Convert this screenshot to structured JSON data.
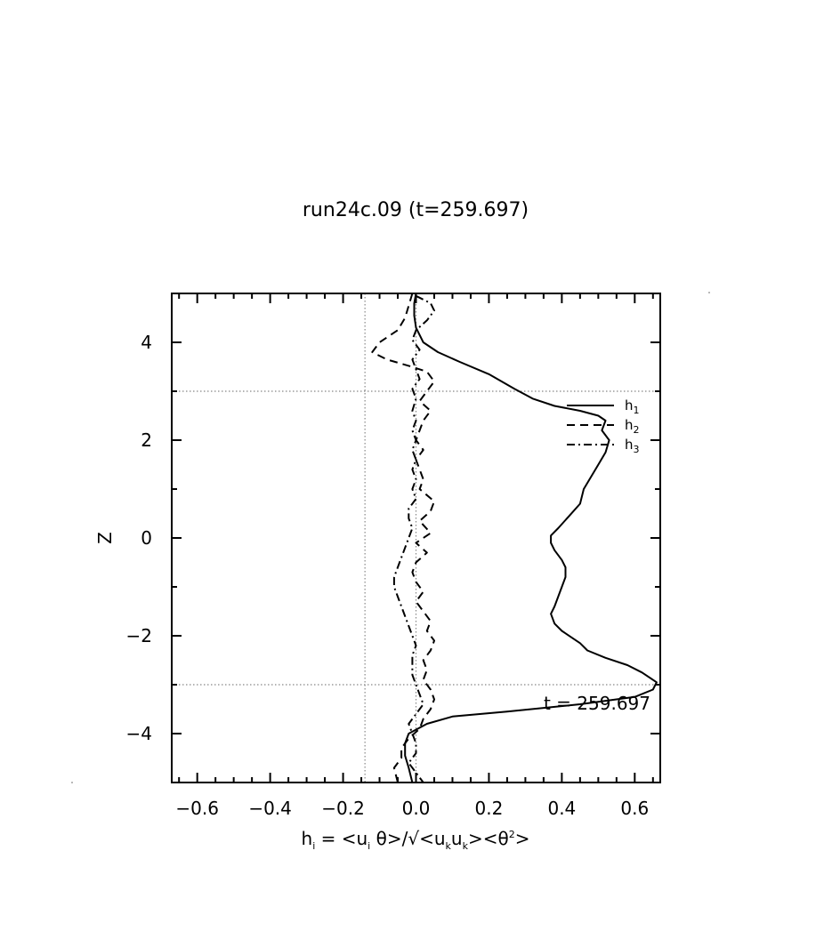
{
  "chart_data": {
    "type": "line",
    "title": "run24c.09 (t=259.697)",
    "xlabel": "h_i = <u_i θ>/√<u_k u_k><θ^2>",
    "ylabel": "Z",
    "xlim": [
      -0.67,
      0.67
    ],
    "ylim": [
      -5,
      5
    ],
    "xticks": [
      -0.6,
      -0.4,
      -0.2,
      0.0,
      0.2,
      0.4,
      0.6
    ],
    "xtick_labels": [
      "−0.6",
      "−0.4",
      "−0.2",
      "0.0",
      "0.2",
      "0.4",
      "0.6"
    ],
    "yticks": [
      -4,
      -2,
      0,
      2,
      4
    ],
    "ytick_labels": [
      "−4",
      "−2",
      "0",
      "2",
      "4"
    ],
    "reference_lines": {
      "horizontal_y": [
        3,
        -3
      ],
      "vertical_x": [
        -0.14,
        0.0
      ]
    },
    "annotation": "t = 259.697",
    "legend_position": "upper-right",
    "series": [
      {
        "name": "h1",
        "style": "solid",
        "points": [
          [
            0.0,
            5.0
          ],
          [
            -0.005,
            4.8
          ],
          [
            -0.005,
            4.55
          ],
          [
            0.0,
            4.3
          ],
          [
            0.02,
            4.0
          ],
          [
            0.06,
            3.8
          ],
          [
            0.12,
            3.6
          ],
          [
            0.2,
            3.35
          ],
          [
            0.27,
            3.05
          ],
          [
            0.32,
            2.85
          ],
          [
            0.38,
            2.7
          ],
          [
            0.45,
            2.6
          ],
          [
            0.5,
            2.5
          ],
          [
            0.52,
            2.4
          ],
          [
            0.51,
            2.2
          ],
          [
            0.53,
            2.0
          ],
          [
            0.52,
            1.75
          ],
          [
            0.5,
            1.5
          ],
          [
            0.48,
            1.25
          ],
          [
            0.46,
            1.0
          ],
          [
            0.45,
            0.7
          ],
          [
            0.42,
            0.45
          ],
          [
            0.39,
            0.2
          ],
          [
            0.37,
            0.05
          ],
          [
            0.37,
            -0.1
          ],
          [
            0.38,
            -0.25
          ],
          [
            0.4,
            -0.45
          ],
          [
            0.41,
            -0.6
          ],
          [
            0.41,
            -0.8
          ],
          [
            0.4,
            -1.0
          ],
          [
            0.39,
            -1.2
          ],
          [
            0.38,
            -1.4
          ],
          [
            0.37,
            -1.55
          ],
          [
            0.38,
            -1.75
          ],
          [
            0.4,
            -1.9
          ],
          [
            0.43,
            -2.05
          ],
          [
            0.45,
            -2.15
          ],
          [
            0.47,
            -2.3
          ],
          [
            0.52,
            -2.45
          ],
          [
            0.58,
            -2.6
          ],
          [
            0.62,
            -2.75
          ],
          [
            0.66,
            -2.95
          ],
          [
            0.65,
            -3.1
          ],
          [
            0.6,
            -3.25
          ],
          [
            0.45,
            -3.4
          ],
          [
            0.25,
            -3.55
          ],
          [
            0.1,
            -3.65
          ],
          [
            0.03,
            -3.8
          ],
          [
            -0.02,
            -4.0
          ],
          [
            -0.03,
            -4.2
          ],
          [
            -0.03,
            -4.45
          ],
          [
            -0.02,
            -4.7
          ],
          [
            -0.01,
            -5.0
          ]
        ]
      },
      {
        "name": "h2",
        "style": "dashed",
        "points": [
          [
            -0.01,
            5.0
          ],
          [
            -0.02,
            4.75
          ],
          [
            -0.03,
            4.5
          ],
          [
            -0.05,
            4.25
          ],
          [
            -0.1,
            4.0
          ],
          [
            -0.12,
            3.8
          ],
          [
            -0.08,
            3.65
          ],
          [
            -0.02,
            3.52
          ],
          [
            0.03,
            3.4
          ],
          [
            0.05,
            3.2
          ],
          [
            0.03,
            3.0
          ],
          [
            0.01,
            2.8
          ],
          [
            0.04,
            2.6
          ],
          [
            0.02,
            2.4
          ],
          [
            0.01,
            2.2
          ],
          [
            0.0,
            2.0
          ],
          [
            0.02,
            1.8
          ],
          [
            0.0,
            1.6
          ],
          [
            0.01,
            1.4
          ],
          [
            0.02,
            1.2
          ],
          [
            0.01,
            1.0
          ],
          [
            0.05,
            0.75
          ],
          [
            0.04,
            0.55
          ],
          [
            0.01,
            0.35
          ],
          [
            0.04,
            0.1
          ],
          [
            0.0,
            -0.1
          ],
          [
            0.03,
            -0.3
          ],
          [
            0.0,
            -0.5
          ],
          [
            -0.01,
            -0.7
          ],
          [
            0.0,
            -0.9
          ],
          [
            0.02,
            -1.1
          ],
          [
            0.0,
            -1.3
          ],
          [
            0.02,
            -1.5
          ],
          [
            0.04,
            -1.7
          ],
          [
            0.03,
            -1.9
          ],
          [
            0.05,
            -2.1
          ],
          [
            0.04,
            -2.3
          ],
          [
            0.02,
            -2.5
          ],
          [
            0.03,
            -2.7
          ],
          [
            0.02,
            -2.9
          ],
          [
            0.04,
            -3.1
          ],
          [
            0.05,
            -3.3
          ],
          [
            0.04,
            -3.5
          ],
          [
            0.02,
            -3.7
          ],
          [
            0.01,
            -3.9
          ],
          [
            -0.02,
            -4.1
          ],
          [
            -0.04,
            -4.3
          ],
          [
            -0.04,
            -4.5
          ],
          [
            -0.06,
            -4.7
          ],
          [
            -0.05,
            -5.0
          ]
        ]
      },
      {
        "name": "h3",
        "style": "dashdot",
        "points": [
          [
            0.0,
            4.95
          ],
          [
            0.04,
            4.8
          ],
          [
            0.05,
            4.65
          ],
          [
            0.03,
            4.45
          ],
          [
            0.0,
            4.25
          ],
          [
            -0.01,
            4.05
          ],
          [
            0.01,
            3.85
          ],
          [
            -0.01,
            3.65
          ],
          [
            0.0,
            3.45
          ],
          [
            0.01,
            3.25
          ],
          [
            -0.01,
            3.05
          ],
          [
            0.0,
            2.85
          ],
          [
            -0.01,
            2.6
          ],
          [
            0.0,
            2.4
          ],
          [
            -0.01,
            2.2
          ],
          [
            0.0,
            2.0
          ],
          [
            -0.01,
            1.8
          ],
          [
            0.0,
            1.6
          ],
          [
            -0.01,
            1.4
          ],
          [
            0.0,
            1.2
          ],
          [
            -0.01,
            1.0
          ],
          [
            0.0,
            0.8
          ],
          [
            -0.02,
            0.6
          ],
          [
            -0.02,
            0.4
          ],
          [
            -0.01,
            0.2
          ],
          [
            -0.02,
            0.0
          ],
          [
            -0.03,
            -0.2
          ],
          [
            -0.04,
            -0.4
          ],
          [
            -0.05,
            -0.6
          ],
          [
            -0.06,
            -0.8
          ],
          [
            -0.06,
            -1.0
          ],
          [
            -0.05,
            -1.2
          ],
          [
            -0.04,
            -1.4
          ],
          [
            -0.03,
            -1.6
          ],
          [
            -0.02,
            -1.8
          ],
          [
            -0.01,
            -2.0
          ],
          [
            0.0,
            -2.2
          ],
          [
            -0.01,
            -2.4
          ],
          [
            -0.01,
            -2.6
          ],
          [
            -0.01,
            -2.8
          ],
          [
            0.0,
            -3.0
          ],
          [
            0.01,
            -3.2
          ],
          [
            0.02,
            -3.4
          ],
          [
            0.0,
            -3.6
          ],
          [
            -0.02,
            -3.8
          ],
          [
            -0.01,
            -4.0
          ],
          [
            0.0,
            -4.2
          ],
          [
            0.0,
            -4.4
          ],
          [
            -0.02,
            -4.6
          ],
          [
            0.0,
            -4.8
          ],
          [
            0.02,
            -5.0
          ]
        ]
      }
    ]
  }
}
